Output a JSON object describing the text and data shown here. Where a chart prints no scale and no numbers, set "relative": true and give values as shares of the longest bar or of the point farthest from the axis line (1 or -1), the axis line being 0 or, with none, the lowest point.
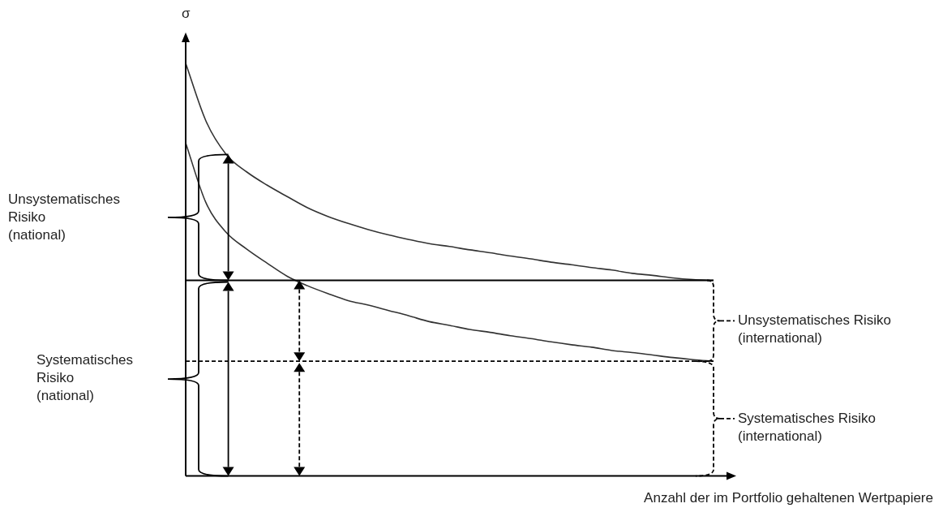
{
  "chart_data": {
    "type": "line",
    "relative": true,
    "ylabel": "σ",
    "xlabel": "Anzahl der im Portfolio gehaltenen Wertpapiere",
    "categories": [
      null,
      null,
      null,
      null,
      null,
      null,
      null,
      null,
      null,
      null,
      null,
      null,
      null,
      null,
      null,
      null,
      null,
      null,
      null,
      null,
      null,
      null,
      null,
      null,
      null,
      null,
      null
    ],
    "series": [
      {
        "color": "#333333",
        "values": [
          1,
          0.86,
          0.779,
          0.737,
          0.705,
          0.677,
          0.65,
          0.629,
          0.612,
          0.597,
          0.584,
          0.573,
          0.563,
          0.556,
          0.548,
          0.541,
          0.533,
          0.526,
          0.518,
          0.512,
          0.505,
          0.499,
          0.491,
          0.486,
          0.48,
          0.476,
          0.474
        ]
      },
      {
        "color": "#333333",
        "values": [
          0.807,
          0.662,
          0.59,
          0.55,
          0.516,
          0.484,
          0.461,
          0.442,
          0.425,
          0.414,
          0.401,
          0.388,
          0.374,
          0.365,
          0.355,
          0.348,
          0.34,
          0.333,
          0.325,
          0.318,
          0.312,
          0.304,
          0.299,
          0.293,
          0.287,
          0.282,
          0.278
        ]
      }
    ],
    "ref_lines": [
      {
        "axis": "y",
        "value": 0.474,
        "color": "#000000",
        "line_style": "solid"
      },
      {
        "axis": "y",
        "value": 0.278,
        "color": "#000000",
        "line_style": "dashed"
      }
    ],
    "annotations": [
      "Unsystematisches Risiko (national)",
      "Systematisches Risiko (national)",
      "Unsystematisches Risiko (international)",
      "Systematisches Risiko (international)"
    ],
    "marker": "none",
    "grid": false,
    "legend": false
  }
}
